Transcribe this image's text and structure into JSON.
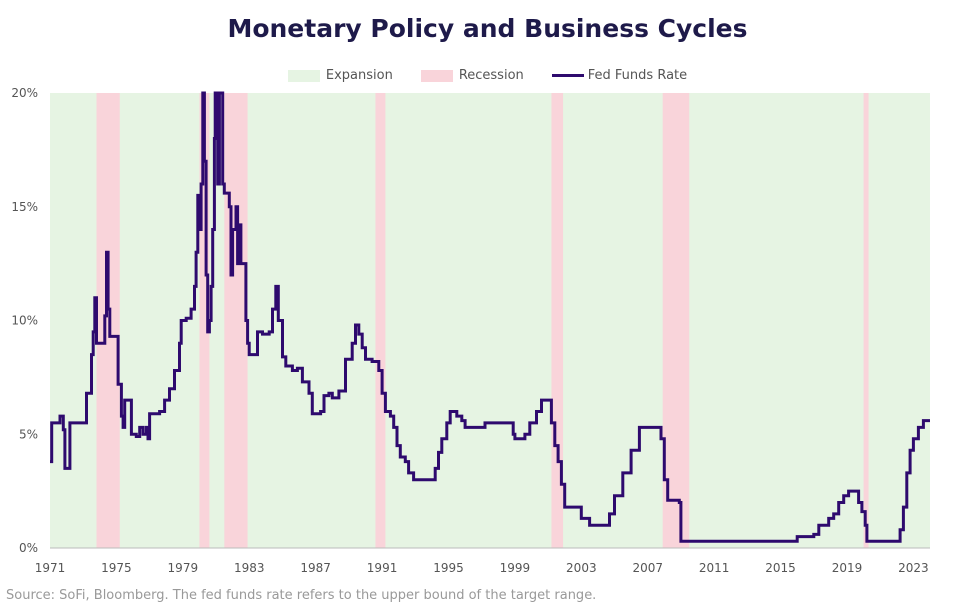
{
  "chart_data": {
    "type": "line",
    "title": "Monetary Policy and Business Cycles",
    "xlabel": "",
    "ylabel": "",
    "xlim": [
      1971.0,
      2024.0
    ],
    "ylim": [
      0,
      20
    ],
    "x_ticks": [
      1971,
      1975,
      1979,
      1983,
      1987,
      1991,
      1995,
      1999,
      2003,
      2007,
      2011,
      2015,
      2019,
      2023
    ],
    "y_ticks": [
      {
        "value": 0,
        "label": "0%"
      },
      {
        "value": 5,
        "label": "5%"
      },
      {
        "value": 10,
        "label": "10%"
      },
      {
        "value": 15,
        "label": "15%"
      },
      {
        "value": 20,
        "label": "20%"
      }
    ],
    "legend": [
      {
        "label": "Expansion",
        "color": "#e6f4e3",
        "kind": "band"
      },
      {
        "label": "Recession",
        "color": "#f9d4da",
        "kind": "band"
      },
      {
        "label": "Fed Funds Rate",
        "color": "#2e0a6e",
        "kind": "line"
      }
    ],
    "recessions": [
      [
        1973.8,
        1975.2
      ],
      [
        1980.0,
        1980.6
      ],
      [
        1981.5,
        1982.9
      ],
      [
        1990.6,
        1991.2
      ],
      [
        2001.2,
        2001.9
      ],
      [
        2007.9,
        2009.5
      ],
      [
        2020.0,
        2020.3
      ]
    ],
    "series": [
      {
        "name": "Fed Funds Rate",
        "color": "#2e0a6e",
        "points": [
          [
            1971.0,
            3.8
          ],
          [
            1971.1,
            5.5
          ],
          [
            1971.4,
            5.5
          ],
          [
            1971.6,
            5.8
          ],
          [
            1971.8,
            5.2
          ],
          [
            1971.9,
            3.5
          ],
          [
            1972.1,
            3.5
          ],
          [
            1972.2,
            5.5
          ],
          [
            1972.9,
            5.5
          ],
          [
            1973.2,
            6.8
          ],
          [
            1973.5,
            8.5
          ],
          [
            1973.6,
            9.5
          ],
          [
            1973.7,
            11.0
          ],
          [
            1973.8,
            9.0
          ],
          [
            1974.2,
            9.0
          ],
          [
            1974.3,
            10.2
          ],
          [
            1974.4,
            13.0
          ],
          [
            1974.5,
            10.5
          ],
          [
            1974.6,
            9.3
          ],
          [
            1975.0,
            9.3
          ],
          [
            1975.1,
            7.2
          ],
          [
            1975.3,
            5.8
          ],
          [
            1975.4,
            5.3
          ],
          [
            1975.5,
            6.5
          ],
          [
            1975.8,
            6.5
          ],
          [
            1975.9,
            5.0
          ],
          [
            1976.2,
            4.9
          ],
          [
            1976.4,
            5.3
          ],
          [
            1976.6,
            5.0
          ],
          [
            1976.8,
            5.3
          ],
          [
            1976.9,
            4.8
          ],
          [
            1977.0,
            5.9
          ],
          [
            1977.6,
            6.0
          ],
          [
            1977.9,
            6.5
          ],
          [
            1978.2,
            7.0
          ],
          [
            1978.5,
            7.8
          ],
          [
            1978.8,
            9.0
          ],
          [
            1978.9,
            10.0
          ],
          [
            1979.2,
            10.1
          ],
          [
            1979.5,
            10.5
          ],
          [
            1979.7,
            11.5
          ],
          [
            1979.8,
            13.0
          ],
          [
            1979.9,
            15.5
          ],
          [
            1980.0,
            14.0
          ],
          [
            1980.1,
            16.0
          ],
          [
            1980.2,
            20.0
          ],
          [
            1980.3,
            17.0
          ],
          [
            1980.4,
            12.0
          ],
          [
            1980.5,
            9.5
          ],
          [
            1980.6,
            10.0
          ],
          [
            1980.7,
            11.5
          ],
          [
            1980.8,
            14.0
          ],
          [
            1980.9,
            18.0
          ],
          [
            1980.95,
            20.0
          ],
          [
            1981.1,
            16.0
          ],
          [
            1981.2,
            20.0
          ],
          [
            1981.3,
            20.0
          ],
          [
            1981.4,
            16.0
          ],
          [
            1981.5,
            15.6
          ],
          [
            1981.8,
            15.0
          ],
          [
            1981.9,
            12.0
          ],
          [
            1982.0,
            14.0
          ],
          [
            1982.2,
            15.0
          ],
          [
            1982.3,
            12.5
          ],
          [
            1982.4,
            14.2
          ],
          [
            1982.5,
            12.5
          ],
          [
            1982.6,
            12.5
          ],
          [
            1982.8,
            10.0
          ],
          [
            1982.9,
            9.0
          ],
          [
            1983.0,
            8.5
          ],
          [
            1983.3,
            8.5
          ],
          [
            1983.5,
            9.5
          ],
          [
            1983.8,
            9.4
          ],
          [
            1984.2,
            9.5
          ],
          [
            1984.4,
            10.5
          ],
          [
            1984.6,
            11.5
          ],
          [
            1984.75,
            10.0
          ],
          [
            1985.0,
            8.4
          ],
          [
            1985.2,
            8.0
          ],
          [
            1985.6,
            7.8
          ],
          [
            1985.9,
            7.9
          ],
          [
            1986.2,
            7.3
          ],
          [
            1986.6,
            6.8
          ],
          [
            1986.8,
            5.9
          ],
          [
            1987.3,
            6.0
          ],
          [
            1987.5,
            6.7
          ],
          [
            1987.8,
            6.8
          ],
          [
            1988.0,
            6.6
          ],
          [
            1988.4,
            6.9
          ],
          [
            1988.8,
            8.3
          ],
          [
            1989.2,
            9.0
          ],
          [
            1989.4,
            9.8
          ],
          [
            1989.6,
            9.4
          ],
          [
            1989.8,
            8.8
          ],
          [
            1990.0,
            8.3
          ],
          [
            1990.4,
            8.2
          ],
          [
            1990.8,
            7.8
          ],
          [
            1991.0,
            6.8
          ],
          [
            1991.2,
            6.0
          ],
          [
            1991.5,
            5.8
          ],
          [
            1991.7,
            5.3
          ],
          [
            1991.9,
            4.5
          ],
          [
            1992.1,
            4.0
          ],
          [
            1992.4,
            3.8
          ],
          [
            1992.6,
            3.3
          ],
          [
            1992.9,
            3.0
          ],
          [
            1994.0,
            3.0
          ],
          [
            1994.2,
            3.5
          ],
          [
            1994.4,
            4.2
          ],
          [
            1994.6,
            4.8
          ],
          [
            1994.9,
            5.5
          ],
          [
            1995.1,
            6.0
          ],
          [
            1995.5,
            5.8
          ],
          [
            1995.8,
            5.6
          ],
          [
            1996.0,
            5.3
          ],
          [
            1997.2,
            5.5
          ],
          [
            1998.7,
            5.5
          ],
          [
            1998.9,
            5.0
          ],
          [
            1999.0,
            4.8
          ],
          [
            1999.4,
            4.8
          ],
          [
            1999.6,
            5.0
          ],
          [
            1999.9,
            5.5
          ],
          [
            2000.3,
            6.0
          ],
          [
            2000.6,
            6.5
          ],
          [
            2001.0,
            6.5
          ],
          [
            2001.2,
            5.5
          ],
          [
            2001.4,
            4.5
          ],
          [
            2001.6,
            3.8
          ],
          [
            2001.8,
            2.8
          ],
          [
            2002.0,
            1.8
          ],
          [
            2002.9,
            1.8
          ],
          [
            2003.0,
            1.3
          ],
          [
            2003.5,
            1.0
          ],
          [
            2004.5,
            1.0
          ],
          [
            2004.7,
            1.5
          ],
          [
            2005.0,
            2.3
          ],
          [
            2005.5,
            3.3
          ],
          [
            2006.0,
            4.3
          ],
          [
            2006.5,
            5.3
          ],
          [
            2007.6,
            5.3
          ],
          [
            2007.8,
            4.8
          ],
          [
            2008.0,
            3.0
          ],
          [
            2008.2,
            2.1
          ],
          [
            2008.9,
            2.0
          ],
          [
            2009.0,
            0.3
          ],
          [
            2015.9,
            0.3
          ],
          [
            2016.0,
            0.5
          ],
          [
            2017.0,
            0.6
          ],
          [
            2017.3,
            1.0
          ],
          [
            2017.9,
            1.3
          ],
          [
            2018.2,
            1.5
          ],
          [
            2018.5,
            2.0
          ],
          [
            2018.8,
            2.3
          ],
          [
            2019.1,
            2.5
          ],
          [
            2019.5,
            2.5
          ],
          [
            2019.7,
            2.0
          ],
          [
            2019.9,
            1.6
          ],
          [
            2020.1,
            1.0
          ],
          [
            2020.2,
            0.3
          ],
          [
            2022.0,
            0.3
          ],
          [
            2022.2,
            0.8
          ],
          [
            2022.4,
            1.8
          ],
          [
            2022.6,
            3.3
          ],
          [
            2022.8,
            4.3
          ],
          [
            2023.0,
            4.8
          ],
          [
            2023.3,
            5.3
          ],
          [
            2023.6,
            5.6
          ],
          [
            2024.0,
            5.6
          ]
        ]
      }
    ],
    "source": "Source: SoFi, Bloomberg. The fed funds rate refers to the upper bound of the target range."
  }
}
